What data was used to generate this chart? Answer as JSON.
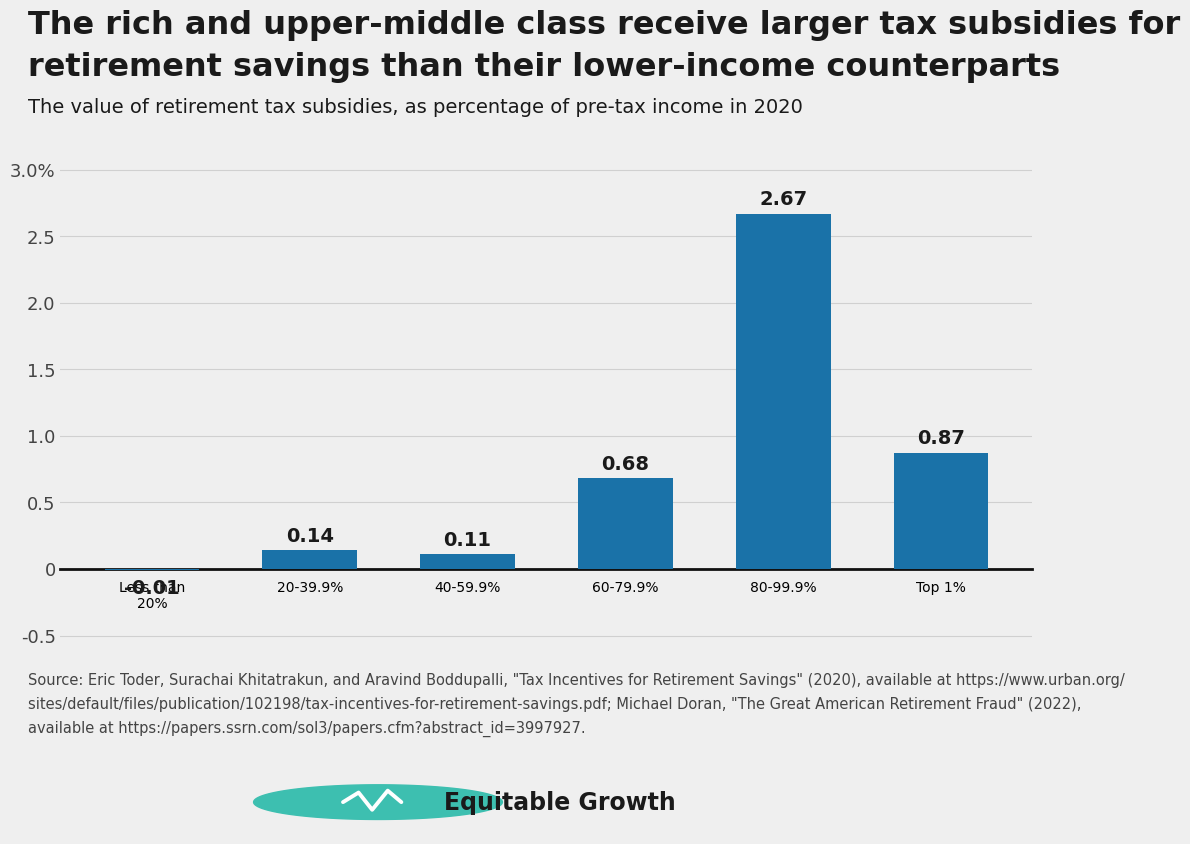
{
  "title_line1": "The rich and upper-middle class receive larger tax subsidies for",
  "title_line2": "retirement savings than their lower-income counterparts",
  "subtitle": "The value of retirement tax subsidies, as percentage of pre-tax income in 2020",
  "categories": [
    "Less than\n20%",
    "20-39.9%",
    "40-59.9%",
    "60-79.9%",
    "80-99.9%",
    "Top 1%"
  ],
  "values": [
    -0.01,
    0.14,
    0.11,
    0.68,
    2.67,
    0.87
  ],
  "bar_color": "#1a72a8",
  "background_color": "#efefef",
  "ylim_min": -0.65,
  "ylim_max": 3.15,
  "ytick_values": [
    -0.5,
    0.0,
    0.5,
    1.0,
    1.5,
    2.0,
    2.5,
    3.0
  ],
  "ytick_labels": [
    "-0.5",
    "0",
    "0.5",
    "1.0",
    "1.5",
    "2.0",
    "2.5",
    "3.0%"
  ],
  "source_line1": "Source: Eric Toder, Surachai Khitatrakun, and Aravind Boddupalli, \"Tax Incentives for Retirement Savings\" (2020), available at https://www.urban.org/",
  "source_line2": "sites/default/files/publication/102198/tax-incentives-for-retirement-savings.pdf; Michael Doran, \"The Great American Retirement Fraud\" (2022),",
  "source_line3": "available at https://papers.ssrn.com/sol3/papers.cfm?abstract_id=3997927.",
  "logo_text": "Equitable Growth",
  "title_fontsize": 23,
  "subtitle_fontsize": 14,
  "bar_label_fontsize": 14,
  "tick_fontsize": 13,
  "source_fontsize": 10.5,
  "text_color": "#1a1a1a",
  "axis_label_color": "#444444",
  "grid_color": "#d0d0d0",
  "zero_line_color": "#111111",
  "teal_color": "#3dbfb0"
}
